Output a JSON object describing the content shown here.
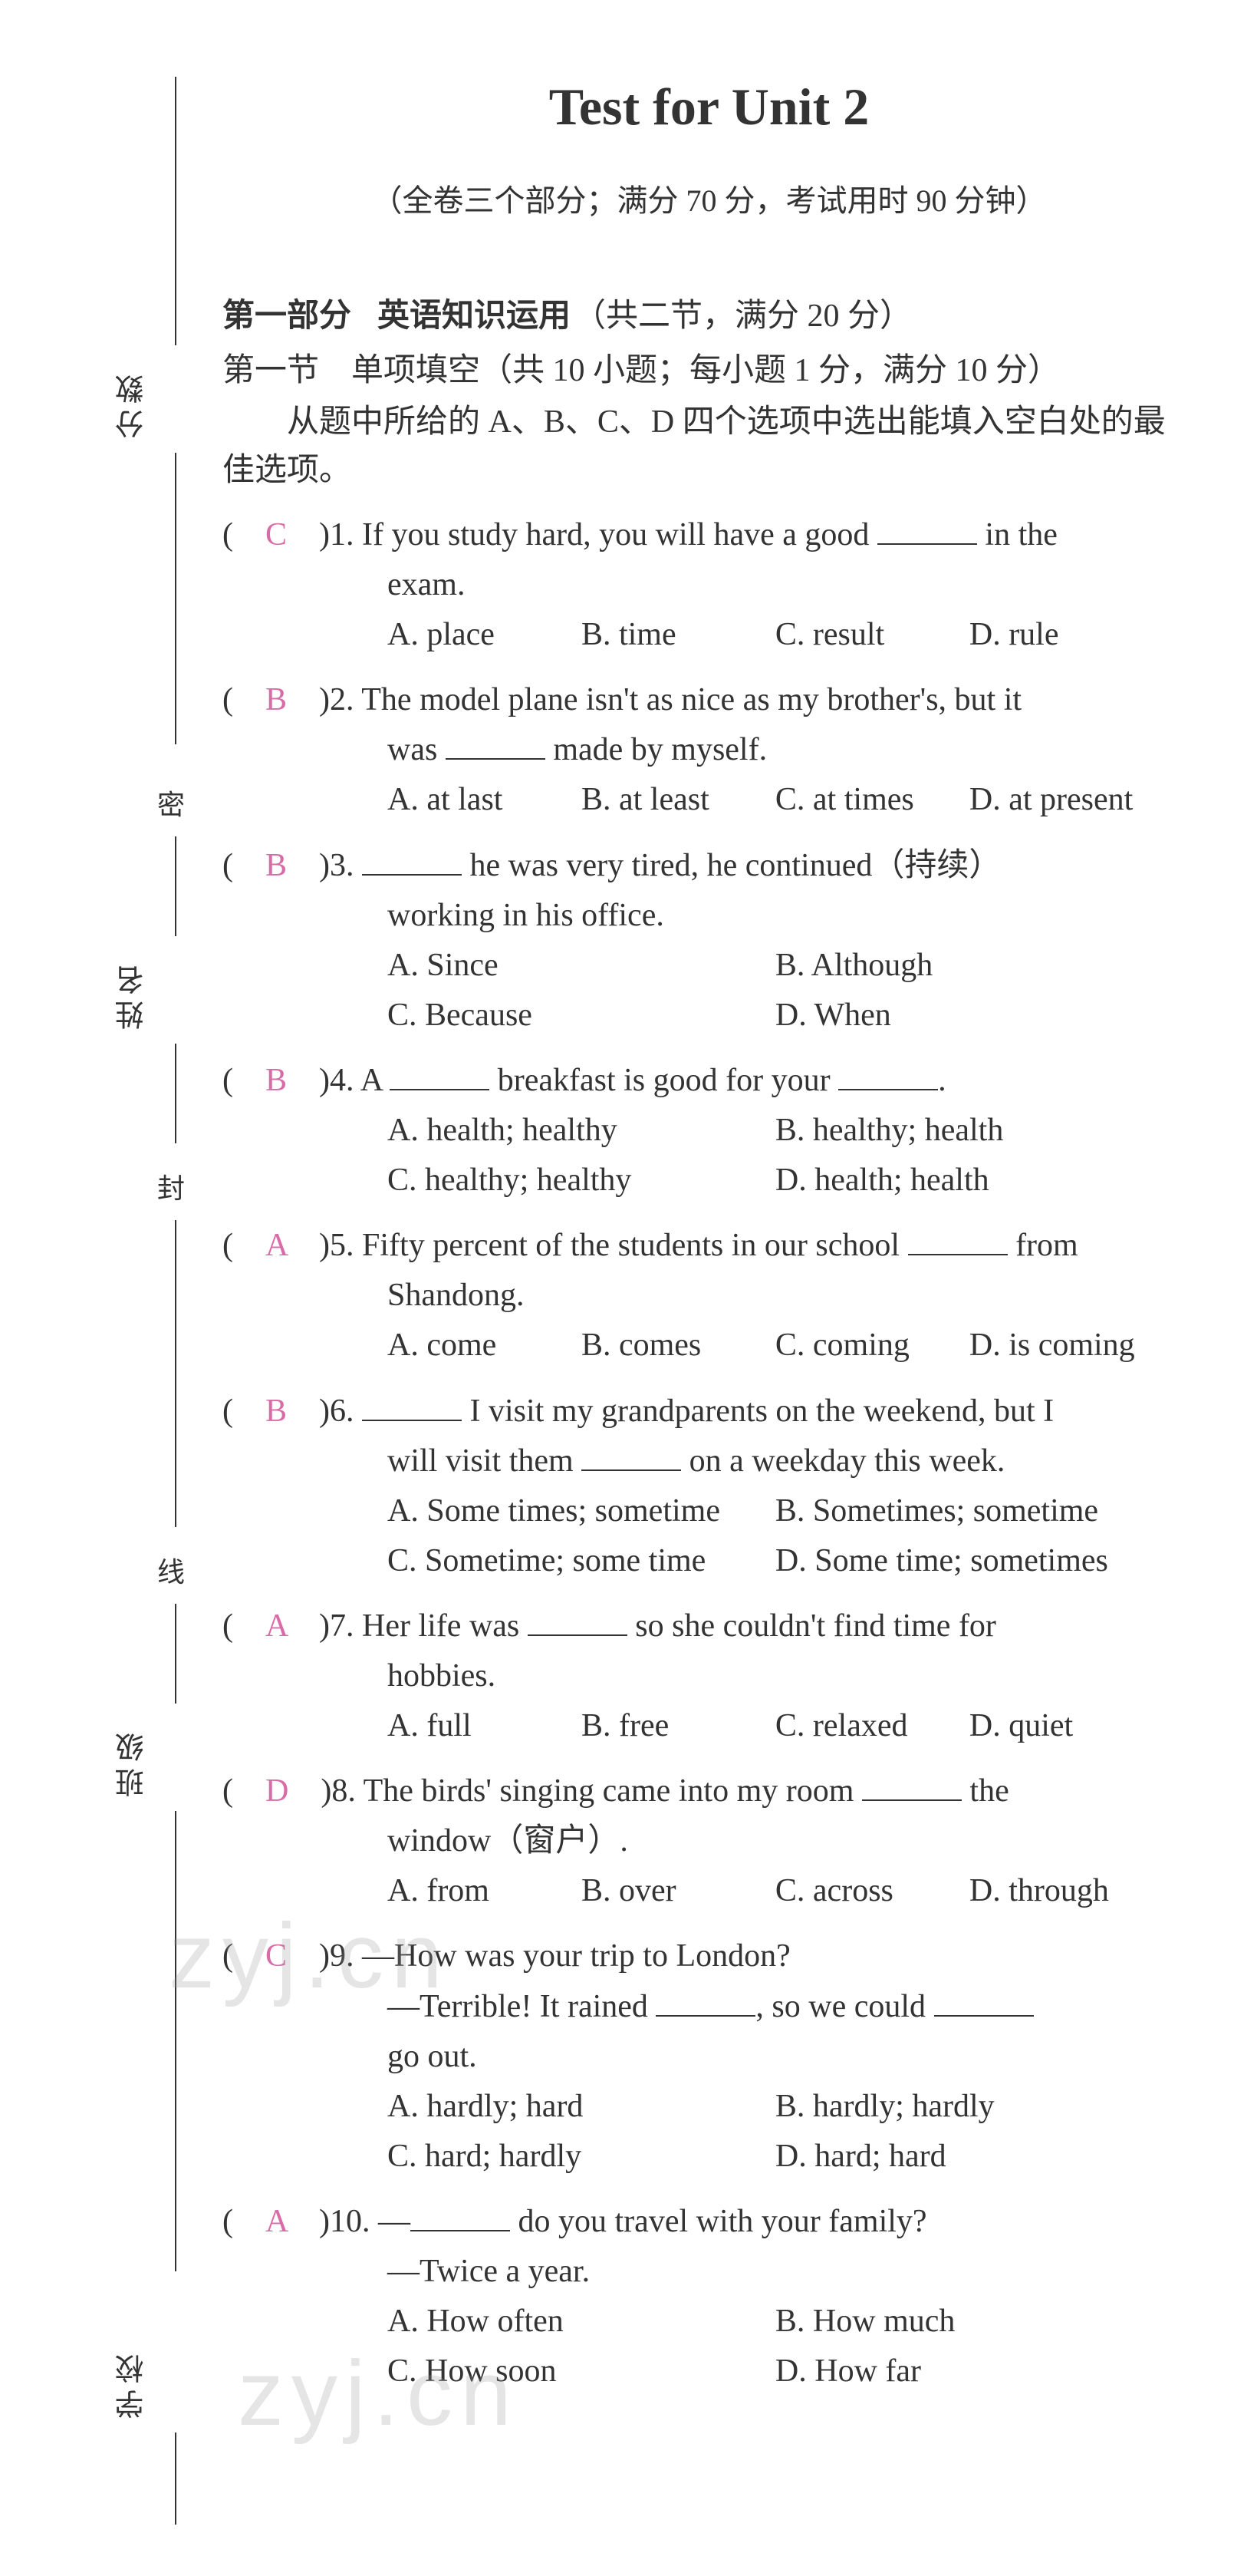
{
  "colors": {
    "text": "#333333",
    "answer": "#d96ba6",
    "background": "#ffffff",
    "watermark": "rgba(150,150,150,0.25)"
  },
  "typography": {
    "title_fontsize": 68,
    "body_fontsize": 42,
    "subtitle_fontsize": 40,
    "font_family_en": "Times New Roman",
    "font_family_cn": "SimSun"
  },
  "margin_labels": {
    "score": "分数",
    "name": "姓名",
    "class": "班级",
    "school": "学校",
    "seal1": "密",
    "seal2": "封",
    "seal3": "线"
  },
  "title": "Test for Unit 2",
  "subtitle": "（全卷三个部分；满分 70 分，考试用时 90 分钟）",
  "section1": {
    "heading": "第一部分",
    "heading_title": "英语知识运用",
    "heading_detail": "（共二节，满分 20 分）",
    "subsection": "第一节　单项填空（共 10 小题；每小题 1 分，满分 10 分）",
    "instructions": "从题中所给的 A、B、C、D 四个选项中选出能填入空白处的最佳选项。"
  },
  "questions": [
    {
      "num": "1",
      "answer": "C",
      "stem_pre": "If you study hard, you will have a good ",
      "stem_post": " in the",
      "continuation": "exam.",
      "options_layout": "4col",
      "options": [
        "A. place",
        "B. time",
        "C. result",
        "D. rule"
      ]
    },
    {
      "num": "2",
      "answer": "B",
      "stem_full": "The model plane isn't as nice as my brother's, but it",
      "continuation_pre": "was ",
      "continuation_post": " made by myself.",
      "options_layout": "4col",
      "options": [
        "A. at last",
        "B. at least",
        "C. at times",
        "D. at present"
      ]
    },
    {
      "num": "3",
      "answer": "B",
      "stem_blank_first": true,
      "stem_post": " he was very tired, he continued（持续）",
      "continuation": "working in his office.",
      "options_layout": "2col",
      "options": [
        "A. Since",
        "B. Although",
        "C. Because",
        "D. When"
      ]
    },
    {
      "num": "4",
      "answer": "B",
      "stem_pre": "A ",
      "stem_mid": " breakfast is good for your ",
      "stem_end": ".",
      "options_layout": "2col",
      "options": [
        "A. health; healthy",
        "B. healthy; health",
        "C. healthy; healthy",
        "D. health; health"
      ]
    },
    {
      "num": "5",
      "answer": "A",
      "stem_pre": "Fifty percent of the students in our school ",
      "stem_post": " from",
      "continuation": "Shandong.",
      "options_layout": "4col",
      "options": [
        "A. come",
        "B. comes",
        "C. coming",
        "D. is coming"
      ]
    },
    {
      "num": "6",
      "answer": "B",
      "stem_blank_first": true,
      "stem_post": " I visit my grandparents on the weekend, but I",
      "continuation_pre": "will visit them ",
      "continuation_post": " on a weekday this week.",
      "options_layout": "2col",
      "options": [
        "A. Some times; sometime",
        "B. Sometimes; sometime",
        "C. Sometime; some time",
        "D. Some time; sometimes"
      ]
    },
    {
      "num": "7",
      "answer": "A",
      "stem_pre": "Her life was ",
      "stem_post": " so she couldn't find time for",
      "continuation": "hobbies.",
      "options_layout": "4col",
      "options": [
        "A. full",
        "B. free",
        "C. relaxed",
        "D. quiet"
      ]
    },
    {
      "num": "8",
      "answer": "D",
      "stem_pre": "The birds' singing came into my room ",
      "stem_post": " the",
      "continuation": "window（窗户）.",
      "options_layout": "4col",
      "options": [
        "A. from",
        "B. over",
        "C. across",
        "D. through"
      ]
    },
    {
      "num": "9",
      "answer": "C",
      "stem_full": "—How was your trip to London?",
      "continuation_pre": "—Terrible! It rained ",
      "continuation_mid": ", so we could ",
      "continuation2": "go out.",
      "options_layout": "2col",
      "options": [
        "A. hardly; hard",
        "B. hardly; hardly",
        "C. hard; hardly",
        "D. hard; hard"
      ]
    },
    {
      "num": "10",
      "answer": "A",
      "stem_pre": "—",
      "stem_post": " do you travel with your family?",
      "continuation": "—Twice a year.",
      "options_layout": "2col",
      "options": [
        "A. How often",
        "B. How much",
        "C. How soon",
        "D. How far"
      ]
    }
  ],
  "watermark_text": "zyj.cn"
}
